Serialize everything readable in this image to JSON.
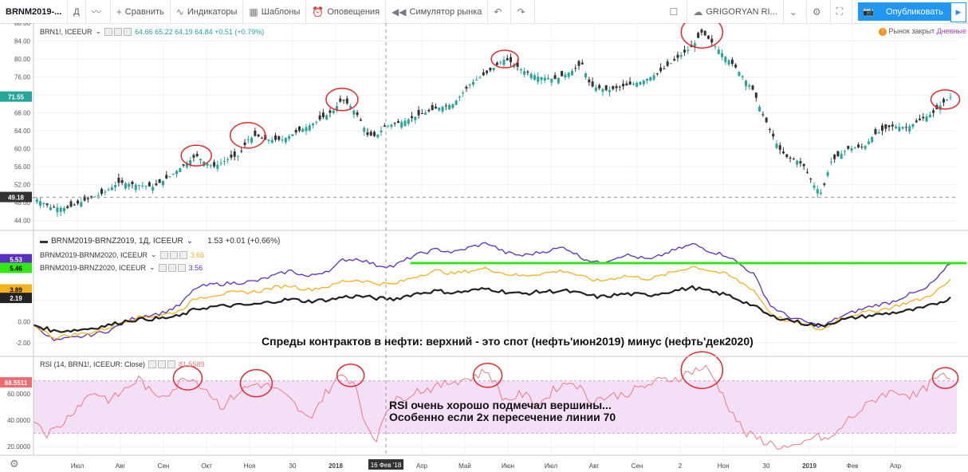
{
  "toolbar": {
    "symbol": "BRNM2019-...",
    "interval": "Д",
    "compare": "Сравнить",
    "indicators": "Индикаторы",
    "templates": "Шаблоны",
    "alerts": "Оповещения",
    "replay": "Симулятор рынка",
    "layout_name": "GRIGORYAN RI...",
    "publish": "Опубликовать"
  },
  "main_legend": {
    "symbol": "BRN1!, ICEEUR",
    "ohlc": "64.66  65.22  64.19  64.84  +0.51 (+0.79%)"
  },
  "market_status": "Рынок закрыт",
  "market_period": "Дневные",
  "spread_legend": {
    "title": "BRNM2019-BRNZ2019, 1Д, ICEEUR",
    "value": "1.53  +0.01 (+0.66%)",
    "s2_name": "BRNM2019-BRNM2020, ICEEUR",
    "s2_value": "3.66",
    "s3_name": "BRNM2019-BRNZ2020, ICEEUR",
    "s3_value": "3.56"
  },
  "rsi_legend": {
    "title": "RSI (14, BRN1!, ICEEUR: Close)",
    "value": "81.5589"
  },
  "annotations": {
    "spreads": "Спреды контрактов в нефти: верхний - это спот (нефть'июн2019) минус (нефть'дек2020)",
    "rsi_line1": "RSI очень хорошо подмечал вершины...",
    "rsi_line2": "Особенно если 2х пересечение линии 70"
  },
  "crosshair_date": "16 Фев '18",
  "colors": {
    "up": "#26a69a",
    "down": "#333333",
    "purple": "#5b2fbf",
    "orange": "#f4b21f",
    "black": "#222222",
    "green_line": "#33e616",
    "rsi": "#f2797f",
    "rsi_band": "#f3e0f7",
    "circle": "#e8262b"
  },
  "chart_data": [
    {
      "type": "candlestick",
      "title": "BRN1!, ICEEUR",
      "ylim": [
        42,
        88
      ],
      "y_ticks": [
        44,
        48,
        52,
        56,
        60,
        64,
        68,
        72,
        76,
        80,
        84,
        88
      ],
      "x_ticks": [
        "Июл",
        "Авг",
        "Сен",
        "Окт",
        "Ноя",
        "30",
        "2018",
        "Фев",
        "Апр",
        "Май",
        "Июн",
        "Июл",
        "Авг",
        "Сен",
        "2",
        "Ноя",
        "30",
        "2019",
        "Фев",
        "Апр"
      ],
      "price_labels": {
        "last": "71.55",
        "crosshair": "49.18"
      },
      "close_path": [
        [
          0,
          49.2
        ],
        [
          10,
          47
        ],
        [
          20,
          46.8
        ],
        [
          30,
          48.5
        ],
        [
          40,
          50
        ],
        [
          50,
          52.5
        ],
        [
          60,
          52
        ],
        [
          70,
          51.5
        ],
        [
          80,
          54
        ],
        [
          90,
          57
        ],
        [
          95,
          58.5
        ],
        [
          100,
          57
        ],
        [
          105,
          56
        ],
        [
          115,
          58
        ],
        [
          120,
          58.5
        ],
        [
          125,
          62
        ],
        [
          130,
          63
        ],
        [
          135,
          62
        ],
        [
          145,
          62
        ],
        [
          155,
          64
        ],
        [
          165,
          66
        ],
        [
          175,
          68.5
        ],
        [
          180,
          71
        ],
        [
          185,
          69.5
        ],
        [
          190,
          67
        ],
        [
          195,
          63
        ],
        [
          200,
          62.8
        ],
        [
          205,
          65
        ],
        [
          215,
          66
        ],
        [
          225,
          67.5
        ],
        [
          235,
          69
        ],
        [
          245,
          70
        ],
        [
          255,
          74.5
        ],
        [
          265,
          77
        ],
        [
          275,
          80
        ],
        [
          280,
          79
        ],
        [
          285,
          77.5
        ],
        [
          295,
          76
        ],
        [
          305,
          75.5
        ],
        [
          315,
          77.5
        ],
        [
          320,
          79
        ],
        [
          325,
          74
        ],
        [
          335,
          73
        ],
        [
          345,
          74
        ],
        [
          355,
          75
        ],
        [
          365,
          77
        ],
        [
          375,
          80
        ],
        [
          385,
          83
        ],
        [
          390,
          86
        ],
        [
          395,
          84
        ],
        [
          400,
          82
        ],
        [
          410,
          78
        ],
        [
          420,
          73
        ],
        [
          425,
          68
        ],
        [
          435,
          60
        ],
        [
          440,
          58
        ],
        [
          445,
          57.5
        ],
        [
          450,
          56
        ],
        [
          455,
          52
        ],
        [
          460,
          50
        ],
        [
          465,
          57
        ],
        [
          475,
          60
        ],
        [
          485,
          60.5
        ],
        [
          490,
          63
        ],
        [
          495,
          64
        ],
        [
          500,
          65
        ],
        [
          510,
          64.8
        ],
        [
          520,
          67
        ],
        [
          525,
          68
        ],
        [
          530,
          70
        ],
        [
          535,
          71.55
        ]
      ],
      "markers_circled_peaks_x": [
        8,
        35,
        59,
        71,
        95,
        125,
        171,
        181
      ]
    },
    {
      "type": "line",
      "title": "BRNM2019-BRNZ2019, 1Д, ICEEUR",
      "ylim": [
        -3.2,
        8.5
      ],
      "y_ticks": [
        -2.0,
        0.0,
        2.0
      ],
      "price_labels": [
        "5.53",
        "5.46",
        "3.89",
        "2.19"
      ],
      "reference_line": 5.5,
      "series": [
        {
          "name": "BRNM2019-BRNM2020, ICEEUR",
          "color": "purple",
          "values": [
            [
              0,
              -0.2
            ],
            [
              12,
              -1.8
            ],
            [
              25,
              -1.5
            ],
            [
              35,
              -1.2
            ],
            [
              45,
              -0.8
            ],
            [
              55,
              0.1
            ],
            [
              62,
              0.5
            ],
            [
              75,
              0.8
            ],
            [
              85,
              1.5
            ],
            [
              95,
              3.2
            ],
            [
              105,
              3.5
            ],
            [
              115,
              3.6
            ],
            [
              130,
              3.8
            ],
            [
              140,
              4.3
            ],
            [
              150,
              4.8
            ],
            [
              160,
              4.2
            ],
            [
              175,
              5.0
            ],
            [
              180,
              5.8
            ],
            [
              190,
              5.9
            ],
            [
              200,
              5.3
            ],
            [
              210,
              5.2
            ],
            [
              222,
              6.2
            ],
            [
              235,
              6.8
            ],
            [
              245,
              6.5
            ],
            [
              255,
              7.0
            ],
            [
              265,
              7.4
            ],
            [
              275,
              6.5
            ],
            [
              285,
              6.2
            ],
            [
              295,
              6.5
            ],
            [
              310,
              7.0
            ],
            [
              320,
              6.0
            ],
            [
              330,
              5.5
            ],
            [
              345,
              6.3
            ],
            [
              360,
              5.8
            ],
            [
              370,
              6.5
            ],
            [
              385,
              7.3
            ],
            [
              395,
              6.6
            ],
            [
              405,
              6.2
            ],
            [
              420,
              4.5
            ],
            [
              430,
              1.5
            ],
            [
              440,
              0.5
            ],
            [
              450,
              0.0
            ],
            [
              460,
              -0.5
            ],
            [
              470,
              0.4
            ],
            [
              480,
              1.0
            ],
            [
              490,
              1.5
            ],
            [
              500,
              1.8
            ],
            [
              510,
              2.5
            ],
            [
              520,
              3.0
            ],
            [
              530,
              4.5
            ],
            [
              535,
              5.53
            ]
          ]
        },
        {
          "name": "BRNM2019-BRNZ2020, ICEEUR",
          "color": "orange",
          "values": [
            [
              0,
              -0.3
            ],
            [
              12,
              -1.5
            ],
            [
              25,
              -1.2
            ],
            [
              35,
              -1.0
            ],
            [
              45,
              -0.5
            ],
            [
              55,
              0.2
            ],
            [
              62,
              0.4
            ],
            [
              75,
              0.6
            ],
            [
              85,
              1.0
            ],
            [
              95,
              2.2
            ],
            [
              105,
              2.5
            ],
            [
              115,
              2.7
            ],
            [
              130,
              2.8
            ],
            [
              140,
              3.2
            ],
            [
              150,
              3.4
            ],
            [
              160,
              3.0
            ],
            [
              175,
              3.4
            ],
            [
              180,
              3.8
            ],
            [
              190,
              3.9
            ],
            [
              200,
              3.6
            ],
            [
              210,
              3.5
            ],
            [
              222,
              4.2
            ],
            [
              235,
              4.8
            ],
            [
              245,
              4.5
            ],
            [
              255,
              4.8
            ],
            [
              265,
              5.0
            ],
            [
              275,
              4.5
            ],
            [
              285,
              4.3
            ],
            [
              295,
              4.5
            ],
            [
              310,
              4.8
            ],
            [
              320,
              4.2
            ],
            [
              330,
              3.8
            ],
            [
              345,
              4.3
            ],
            [
              360,
              4.0
            ],
            [
              370,
              4.5
            ],
            [
              385,
              5.2
            ],
            [
              395,
              4.8
            ],
            [
              405,
              4.4
            ],
            [
              420,
              3.0
            ],
            [
              430,
              0.8
            ],
            [
              440,
              0.0
            ],
            [
              450,
              -0.3
            ],
            [
              460,
              -0.8
            ],
            [
              470,
              0.3
            ],
            [
              480,
              0.7
            ],
            [
              490,
              1.0
            ],
            [
              500,
              1.3
            ],
            [
              510,
              1.8
            ],
            [
              520,
              2.2
            ],
            [
              530,
              3.2
            ],
            [
              535,
              3.89
            ]
          ]
        },
        {
          "name": "BRNM2019-BRNZ2019, 1Д, ICEEUR",
          "color": "black",
          "values": [
            [
              0,
              -0.3
            ],
            [
              12,
              -0.9
            ],
            [
              25,
              -0.8
            ],
            [
              35,
              -0.6
            ],
            [
              45,
              -0.3
            ],
            [
              55,
              0.1
            ],
            [
              62,
              0.2
            ],
            [
              75,
              0.3
            ],
            [
              85,
              0.5
            ],
            [
              95,
              1.2
            ],
            [
              105,
              1.4
            ],
            [
              115,
              1.5
            ],
            [
              130,
              1.6
            ],
            [
              140,
              1.9
            ],
            [
              150,
              2.1
            ],
            [
              160,
              1.9
            ],
            [
              175,
              2.1
            ],
            [
              180,
              2.3
            ],
            [
              190,
              2.4
            ],
            [
              200,
              2.2
            ],
            [
              210,
              2.1
            ],
            [
              222,
              2.6
            ],
            [
              235,
              2.9
            ],
            [
              245,
              2.7
            ],
            [
              255,
              2.9
            ],
            [
              265,
              3.1
            ],
            [
              275,
              2.8
            ],
            [
              285,
              2.6
            ],
            [
              295,
              2.8
            ],
            [
              310,
              2.9
            ],
            [
              320,
              2.6
            ],
            [
              330,
              2.3
            ],
            [
              345,
              2.6
            ],
            [
              360,
              2.5
            ],
            [
              370,
              2.8
            ],
            [
              385,
              3.2
            ],
            [
              395,
              2.8
            ],
            [
              405,
              2.5
            ],
            [
              420,
              1.5
            ],
            [
              430,
              0.5
            ],
            [
              440,
              0.2
            ],
            [
              450,
              -0.2
            ],
            [
              460,
              -0.4
            ],
            [
              470,
              0.1
            ],
            [
              480,
              0.4
            ],
            [
              490,
              0.6
            ],
            [
              500,
              0.8
            ],
            [
              510,
              1.0
            ],
            [
              520,
              1.3
            ],
            [
              530,
              1.9
            ],
            [
              535,
              2.19
            ]
          ]
        }
      ]
    },
    {
      "type": "line",
      "title": "RSI (14, BRN1!, ICEEUR: Close)",
      "ylim": [
        14,
        88
      ],
      "y_ticks": [
        20,
        40,
        60
      ],
      "y_tick_labels": [
        "20.0000",
        "40.0000",
        "60.0000"
      ],
      "last_label": "68.5511",
      "band": [
        30,
        70
      ],
      "values": [
        [
          0,
          42
        ],
        [
          8,
          30
        ],
        [
          15,
          35
        ],
        [
          25,
          50
        ],
        [
          35,
          62
        ],
        [
          45,
          55
        ],
        [
          55,
          65
        ],
        [
          62,
          72
        ],
        [
          70,
          58
        ],
        [
          80,
          62
        ],
        [
          90,
          74
        ],
        [
          100,
          65
        ],
        [
          110,
          50
        ],
        [
          120,
          62
        ],
        [
          130,
          68
        ],
        [
          140,
          65
        ],
        [
          150,
          55
        ],
        [
          160,
          40
        ],
        [
          170,
          60
        ],
        [
          180,
          75
        ],
        [
          188,
          68
        ],
        [
          195,
          30
        ],
        [
          200,
          25
        ],
        [
          205,
          48
        ],
        [
          212,
          55
        ],
        [
          222,
          62
        ],
        [
          235,
          65
        ],
        [
          245,
          70
        ],
        [
          255,
          72
        ],
        [
          265,
          78
        ],
        [
          275,
          55
        ],
        [
          285,
          60
        ],
        [
          295,
          52
        ],
        [
          305,
          65
        ],
        [
          315,
          70
        ],
        [
          325,
          55
        ],
        [
          335,
          58
        ],
        [
          345,
          60
        ],
        [
          355,
          65
        ],
        [
          365,
          70
        ],
        [
          375,
          72
        ],
        [
          385,
          78
        ],
        [
          392,
          80
        ],
        [
          398,
          70
        ],
        [
          405,
          52
        ],
        [
          415,
          30
        ],
        [
          425,
          25
        ],
        [
          435,
          20
        ],
        [
          445,
          18
        ],
        [
          455,
          28
        ],
        [
          465,
          25
        ],
        [
          475,
          40
        ],
        [
          485,
          50
        ],
        [
          495,
          60
        ],
        [
          505,
          62
        ],
        [
          515,
          58
        ],
        [
          525,
          70
        ],
        [
          532,
          74
        ],
        [
          535,
          68.55
        ]
      ]
    }
  ]
}
